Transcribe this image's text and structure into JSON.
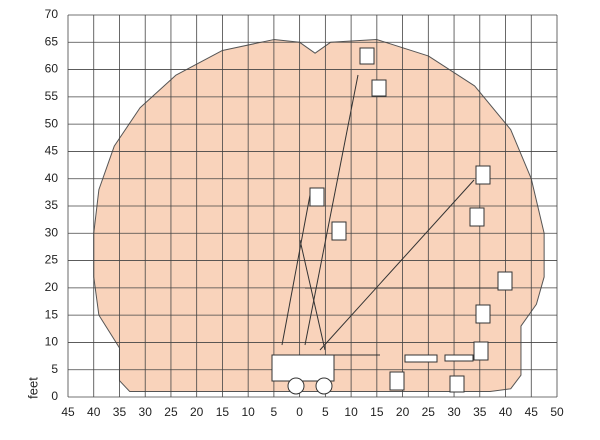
{
  "chart_data": {
    "type": "envelope",
    "ylabel": "feet",
    "xlim": [
      -45,
      50
    ],
    "ylim": [
      0,
      70
    ],
    "xticks": [
      {
        "value": -45,
        "label": "45"
      },
      {
        "value": -40,
        "label": "40"
      },
      {
        "value": -35,
        "label": "35"
      },
      {
        "value": -30,
        "label": "30"
      },
      {
        "value": -25,
        "label": "25"
      },
      {
        "value": -20,
        "label": "20"
      },
      {
        "value": -15,
        "label": "15"
      },
      {
        "value": -10,
        "label": "10"
      },
      {
        "value": -5,
        "label": "5"
      },
      0,
      5,
      10,
      15,
      20,
      25,
      30,
      35,
      40,
      45,
      50
    ],
    "yticks": [
      0,
      5,
      10,
      15,
      20,
      25,
      30,
      35,
      40,
      45,
      50,
      55,
      60,
      65,
      70
    ],
    "grid": true,
    "series": [
      {
        "color": "#f9d3bb",
        "x": [
          -33,
          -35,
          -35,
          -37,
          -39,
          -40,
          -40,
          -39,
          -36,
          -31,
          -24,
          -15,
          -5,
          0,
          3,
          6,
          15,
          25,
          34,
          41,
          45,
          47.5,
          47.5,
          46,
          43,
          43,
          43,
          41,
          37,
          -30
        ],
        "values": [
          1,
          3,
          9,
          12,
          15,
          22,
          30,
          38,
          46,
          53,
          59,
          63.5,
          65.5,
          65,
          63,
          65,
          65.5,
          62.5,
          57,
          49,
          40,
          30,
          22,
          17,
          13,
          9,
          4,
          1.5,
          1,
          1
        ]
      }
    ]
  }
}
